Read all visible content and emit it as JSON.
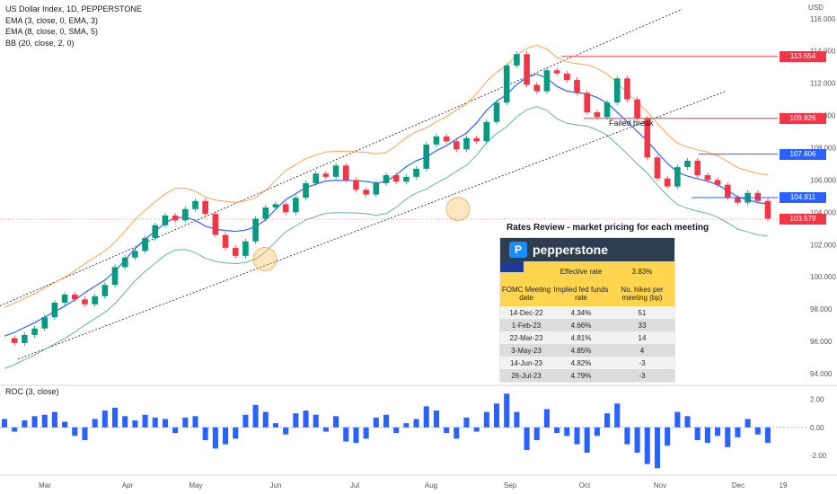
{
  "legend": {
    "line1": "US Dollar Index, 1D, PEPPERSTONE",
    "line2": "EMA (3, close, 0, EMA, 3)",
    "line3": "EMA (8, close, 0, SMA, 5)",
    "line4": "BB (20, close, 2, 0)",
    "roc": "ROC (3, close)"
  },
  "currency": "USD",
  "annotations": {
    "failed_break": "Failed break",
    "rates_title": "Rates Review - market pricing for each meeting"
  },
  "table": {
    "brand": "pepperstone",
    "effective_label": "Effective rate",
    "effective_value": "3.83%",
    "headers": [
      "FOMC Meeting date",
      "Implied fed funds rate",
      "No. hikes per meeting (bp)"
    ],
    "rows": [
      [
        "14-Dec-22",
        "4.34%",
        "51"
      ],
      [
        "1-Feb-23",
        "4.66%",
        "33"
      ],
      [
        "22-Mar-23",
        "4.81%",
        "14"
      ],
      [
        "3-May-23",
        "4.85%",
        "4"
      ],
      [
        "14-Jun-23",
        "4.82%",
        "-3"
      ],
      [
        "26-Jul-23",
        "4.79%",
        "-3"
      ]
    ]
  },
  "chart_data": {
    "type": "line",
    "price_axis": {
      "ticks": [
        "116.000",
        "114.000",
        "112.000",
        "110.000",
        "108.000",
        "106.000",
        "104.000",
        "102.000",
        "100.000",
        "98.000",
        "96.000",
        "94.000"
      ],
      "range": [
        93.5,
        116.6
      ]
    },
    "roc_axis": {
      "ticks": [
        "2.00",
        "0.00",
        "-2.00"
      ],
      "range": [
        -3.2,
        2.8
      ]
    },
    "x_labels": [
      "Mar",
      "Apr",
      "May",
      "Jun",
      "Jul",
      "Aug",
      "Sep",
      "Oct",
      "Nov",
      "Dec",
      "19"
    ],
    "levels": [
      {
        "label": "113.654",
        "value": 113.654,
        "color": "#f23645"
      },
      {
        "label": "109.826",
        "value": 109.826,
        "color": "#f23645"
      },
      {
        "label": "107.606",
        "value": 107.606,
        "color": "#2962ff"
      },
      {
        "label": "104.911",
        "value": 104.911,
        "color": "#2962ff"
      },
      {
        "label": "103.579",
        "value": 103.579,
        "color": "#f23645"
      }
    ],
    "close_series": [
      96.2,
      95.9,
      96.4,
      96.8,
      97.5,
      98.4,
      98.9,
      98.6,
      98.3,
      98.8,
      99.5,
      100.6,
      101.2,
      101.6,
      102.4,
      103.2,
      103.8,
      103.5,
      104.2,
      104.7,
      103.9,
      102.6,
      101.8,
      101.3,
      102.2,
      103.6,
      104.3,
      104.5,
      104.0,
      104.9,
      105.8,
      106.4,
      106.2,
      106.9,
      106.0,
      105.4,
      105.1,
      105.8,
      106.3,
      105.9,
      106.2,
      106.7,
      108.2,
      108.7,
      108.4,
      107.9,
      108.6,
      108.4,
      109.6,
      110.8,
      113.1,
      113.8,
      111.9,
      111.5,
      112.8,
      112.6,
      112.2,
      111.4,
      110.2,
      109.9,
      110.8,
      112.3,
      111.0,
      109.8,
      107.4,
      106.1,
      105.6,
      106.8,
      107.2,
      106.3,
      106.0,
      105.7,
      104.9,
      104.6,
      105.2,
      104.7,
      103.6
    ],
    "roc_series": [
      0.6,
      -0.3,
      0.5,
      0.8,
      0.9,
      1.1,
      0.4,
      -0.6,
      -0.9,
      0.6,
      1.2,
      1.4,
      0.8,
      0.5,
      0.9,
      0.7,
      0.6,
      -0.4,
      0.7,
      0.8,
      -0.9,
      -1.5,
      -1.2,
      -0.8,
      0.9,
      1.6,
      1.1,
      0.3,
      -0.5,
      1.0,
      1.2,
      0.9,
      -0.3,
      0.8,
      -1.0,
      -1.1,
      -0.8,
      0.7,
      0.9,
      -0.4,
      0.3,
      0.6,
      1.5,
      1.2,
      -0.4,
      -0.8,
      0.7,
      -0.3,
      1.1,
      1.7,
      2.4,
      1.1,
      -1.6,
      -0.9,
      1.3,
      -0.4,
      -0.6,
      -1.2,
      -1.8,
      -0.6,
      1.0,
      1.7,
      -1.2,
      -1.8,
      -2.6,
      -2.9,
      -1.3,
      1.1,
      0.8,
      -0.9,
      -1.1,
      -0.6,
      -1.4,
      -0.7,
      0.6,
      -0.5,
      -1.1
    ]
  }
}
